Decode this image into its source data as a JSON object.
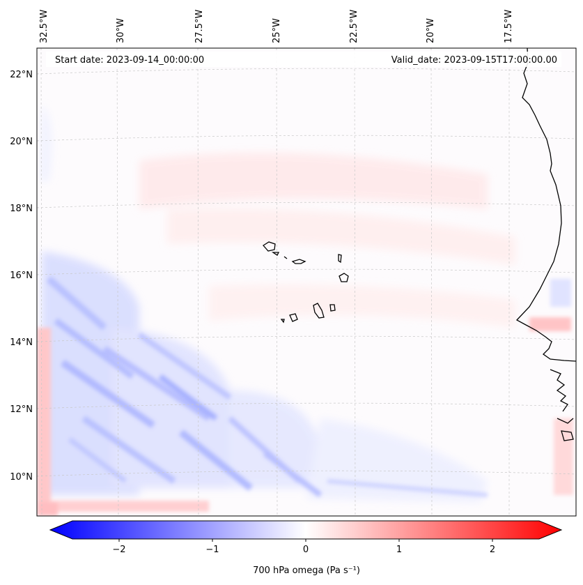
{
  "header": {
    "start_date": "Start date: 2023-09-14_00:00:00",
    "valid_date": "Valid_date: 2023-09-15T17:00:00.00"
  },
  "map": {
    "lon_labels": [
      "32.5°W",
      "30°W",
      "27.5°W",
      "25°W",
      "22.5°W",
      "20°W",
      "17.5°W"
    ],
    "lat_labels": [
      "22°N",
      "20°N",
      "18°N",
      "16°N",
      "14°N",
      "12°N",
      "10°N"
    ],
    "gridlines": true,
    "gridline_style": "dashed",
    "features": [
      "Cape Verde islands",
      "West African coastline"
    ],
    "field": "vertical velocity at 700 hPa"
  },
  "colorbar": {
    "label": "700 hPa omega (Pa s⁻¹)",
    "ticks": [
      "−2",
      "−1",
      "0",
      "1",
      "2"
    ],
    "range": [
      -2.75,
      2.75
    ],
    "colormap": "bwr",
    "extend": "both",
    "colors": {
      "negative": "#0000ff",
      "zero": "#ffffff",
      "positive": "#ff0000"
    }
  }
}
